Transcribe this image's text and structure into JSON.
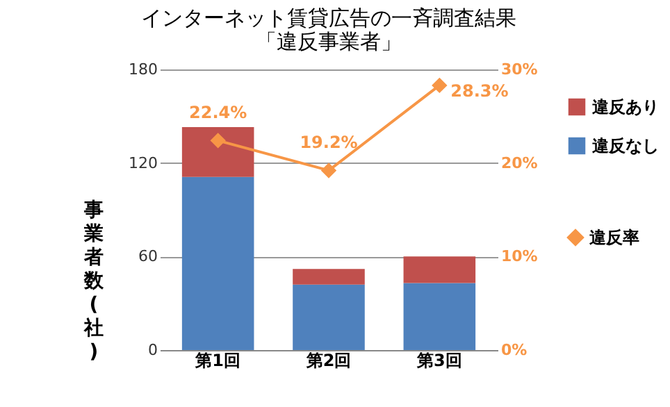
{
  "chart_data": {
    "type": "bar",
    "title": "インターネット賃貸広告の一斉調査結果",
    "subtitle": "「違反事業者」",
    "ylabel": "事業者数(社)",
    "categories": [
      "第1回",
      "第2回",
      "第3回"
    ],
    "stacked": true,
    "series": [
      {
        "name": "違反なし",
        "color": "#4f81bd",
        "values": [
          111,
          42,
          43
        ]
      },
      {
        "name": "違反あり",
        "color": "#c0504d",
        "values": [
          32,
          10,
          17
        ]
      },
      {
        "name": "違反率",
        "type": "line",
        "axis": "y2",
        "color": "#f79646",
        "values": [
          22.4,
          19.2,
          28.3
        ],
        "value_labels": [
          "22.4%",
          "19.2%",
          "28.3%"
        ]
      }
    ],
    "ylim": [
      0,
      180
    ],
    "yticks": [
      0,
      60,
      120,
      180
    ],
    "y2lim": [
      0,
      30
    ],
    "y2ticks": [
      {
        "value": 0,
        "label": "0%"
      },
      {
        "value": 10,
        "label": "10%"
      },
      {
        "value": 20,
        "label": "20%"
      },
      {
        "value": 30,
        "label": "30%"
      }
    ],
    "grid": "y",
    "legend": "right",
    "marker": "diamond",
    "line_style": "solid"
  }
}
